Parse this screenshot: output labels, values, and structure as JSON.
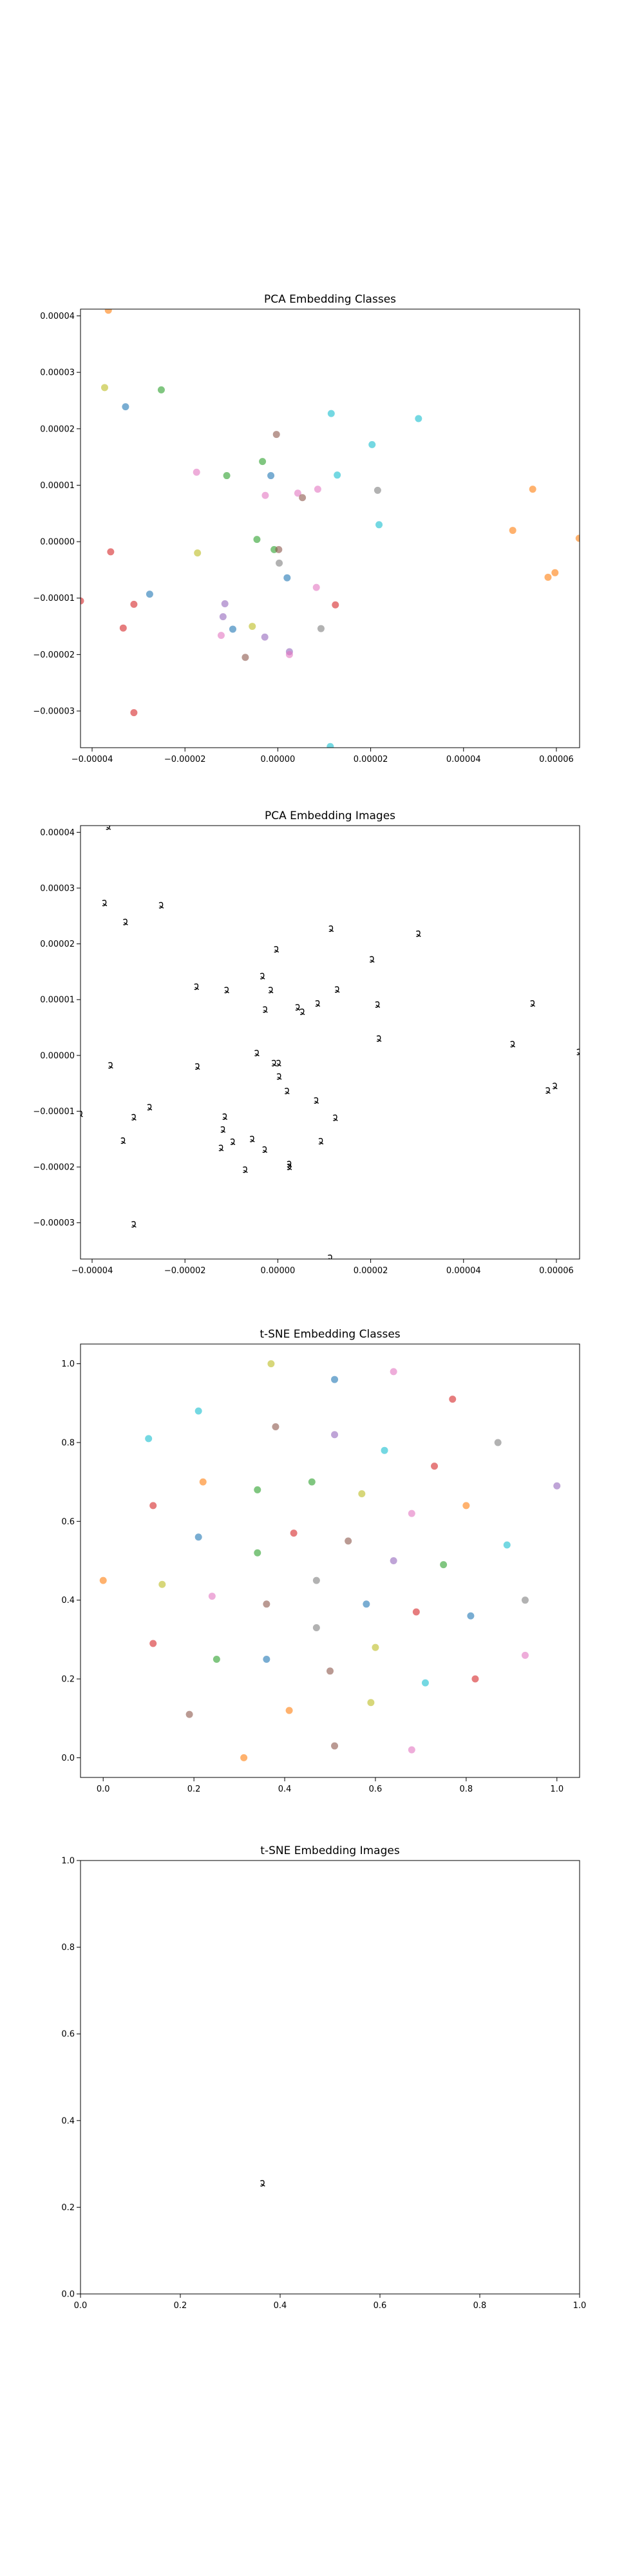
{
  "chart_data": [
    {
      "type": "scatter",
      "title": "PCA Embedding Classes",
      "xlim": [
        -4.25e-05,
        6.5e-05
      ],
      "ylim": [
        -3.65e-05,
        4.12e-05
      ],
      "x_ticks": [
        -4e-05,
        -2e-05,
        0.0,
        2e-05,
        4e-05,
        6e-05
      ],
      "x_tick_labels": [
        "−0.00004",
        "−0.00002",
        "0.00000",
        "0.00002",
        "0.00004",
        "0.00006"
      ],
      "y_ticks": [
        -3e-05,
        -2e-05,
        -1e-05,
        0.0,
        1e-05,
        2e-05,
        3e-05,
        4e-05
      ],
      "y_tick_labels": [
        "−0.00003",
        "−0.00002",
        "−0.00001",
        "0.00000",
        "0.00001",
        "0.00002",
        "0.00003",
        "0.00004"
      ],
      "grid": false,
      "points": [
        {
          "x": -3.65e-05,
          "y": 4.1e-05,
          "color": "#ff7f0e"
        },
        {
          "x": -3.73e-05,
          "y": 2.73e-05,
          "color": "#bcbd22"
        },
        {
          "x": -3.28e-05,
          "y": 2.39e-05,
          "color": "#1f77b4"
        },
        {
          "x": -2.51e-05,
          "y": 2.69e-05,
          "color": "#2ca02c"
        },
        {
          "x": -1.75e-05,
          "y": 1.23e-05,
          "color": "#e377c2"
        },
        {
          "x": -1.1e-05,
          "y": 1.17e-05,
          "color": "#2ca02c"
        },
        {
          "x": -1.73e-05,
          "y": -2e-06,
          "color": "#bcbd22"
        },
        {
          "x": -3.6e-05,
          "y": -1.8e-06,
          "color": "#d62728"
        },
        {
          "x": -4.25e-05,
          "y": -1.05e-05,
          "color": "#d62728"
        },
        {
          "x": -2.76e-05,
          "y": -9.3e-06,
          "color": "#1f77b4"
        },
        {
          "x": -3.1e-05,
          "y": -1.11e-05,
          "color": "#d62728"
        },
        {
          "x": -3.33e-05,
          "y": -1.53e-05,
          "color": "#d62728"
        },
        {
          "x": -3.1e-05,
          "y": -3.03e-05,
          "color": "#d62728"
        },
        {
          "x": -1.14e-05,
          "y": -1.1e-05,
          "color": "#9467bd"
        },
        {
          "x": -1.18e-05,
          "y": -1.33e-05,
          "color": "#9467bd"
        },
        {
          "x": -9.7e-06,
          "y": -1.55e-05,
          "color": "#1f77b4"
        },
        {
          "x": -1.22e-05,
          "y": -1.66e-05,
          "color": "#e377c2"
        },
        {
          "x": -5.5e-06,
          "y": -1.5e-05,
          "color": "#bcbd22"
        },
        {
          "x": -2.8e-06,
          "y": -1.69e-05,
          "color": "#9467bd"
        },
        {
          "x": -7e-06,
          "y": -2.05e-05,
          "color": "#8c564b"
        },
        {
          "x": 2.5e-06,
          "y": -1.95e-05,
          "color": "#9467bd"
        },
        {
          "x": 2.5e-06,
          "y": -2e-05,
          "color": "#e377c2"
        },
        {
          "x": -4.5e-06,
          "y": 4e-07,
          "color": "#2ca02c"
        },
        {
          "x": -8e-07,
          "y": -1.4e-06,
          "color": "#2ca02c"
        },
        {
          "x": 2e-07,
          "y": -1.4e-06,
          "color": "#8c564b"
        },
        {
          "x": 3e-07,
          "y": -3.8e-06,
          "color": "#7f7f7f"
        },
        {
          "x": 2e-06,
          "y": -6.4e-06,
          "color": "#1f77b4"
        },
        {
          "x": 8.3e-06,
          "y": -8.1e-06,
          "color": "#e377c2"
        },
        {
          "x": 9.3e-06,
          "y": -1.54e-05,
          "color": "#7f7f7f"
        },
        {
          "x": 1.24e-05,
          "y": -1.12e-05,
          "color": "#d62728"
        },
        {
          "x": 1.13e-05,
          "y": -3.63e-05,
          "color": "#17becf"
        },
        {
          "x": -3.3e-06,
          "y": 1.42e-05,
          "color": "#2ca02c"
        },
        {
          "x": -1.5e-06,
          "y": 1.17e-05,
          "color": "#1f77b4"
        },
        {
          "x": -3e-07,
          "y": 1.9e-05,
          "color": "#8c564b"
        },
        {
          "x": -2.7e-06,
          "y": 8.2e-06,
          "color": "#e377c2"
        },
        {
          "x": 4.3e-06,
          "y": 8.6e-06,
          "color": "#e377c2"
        },
        {
          "x": 5.3e-06,
          "y": 7.8e-06,
          "color": "#8c564b"
        },
        {
          "x": 8.6e-06,
          "y": 9.3e-06,
          "color": "#e377c2"
        },
        {
          "x": 1.28e-05,
          "y": 1.18e-05,
          "color": "#17becf"
        },
        {
          "x": 1.15e-05,
          "y": 2.27e-05,
          "color": "#17becf"
        },
        {
          "x": 2.03e-05,
          "y": 1.72e-05,
          "color": "#17becf"
        },
        {
          "x": 2.15e-05,
          "y": 9.1e-06,
          "color": "#7f7f7f"
        },
        {
          "x": 2.18e-05,
          "y": 3e-06,
          "color": "#17becf"
        },
        {
          "x": 3.03e-05,
          "y": 2.18e-05,
          "color": "#17becf"
        },
        {
          "x": 5.06e-05,
          "y": 2e-06,
          "color": "#ff7f0e"
        },
        {
          "x": 5.49e-05,
          "y": 9.3e-06,
          "color": "#ff7f0e"
        },
        {
          "x": 5.82e-05,
          "y": -6.3e-06,
          "color": "#ff7f0e"
        },
        {
          "x": 5.97e-05,
          "y": -5.5e-06,
          "color": "#ff7f0e"
        },
        {
          "x": 6.49e-05,
          "y": 6e-07,
          "color": "#ff7f0e"
        }
      ]
    },
    {
      "type": "scatter",
      "title": "PCA Embedding Images",
      "xlim": [
        -4.25e-05,
        6.5e-05
      ],
      "ylim": [
        -3.65e-05,
        4.12e-05
      ],
      "x_ticks": [
        -4e-05,
        -2e-05,
        0.0,
        2e-05,
        4e-05,
        6e-05
      ],
      "x_tick_labels": [
        "−0.00004",
        "−0.00002",
        "0.00000",
        "0.00002",
        "0.00004",
        "0.00006"
      ],
      "y_ticks": [
        -3e-05,
        -2e-05,
        -1e-05,
        0.0,
        1e-05,
        2e-05,
        3e-05,
        4e-05
      ],
      "y_tick_labels": [
        "−0.00003",
        "−0.00002",
        "−0.00001",
        "0.00000",
        "0.00001",
        "0.00002",
        "0.00003",
        "0.00004"
      ],
      "grid": false,
      "marker": "digit-image",
      "points_same_as_chart": 0
    },
    {
      "type": "scatter",
      "title": "t-SNE Embedding Classes",
      "xlim": [
        -0.05,
        1.05
      ],
      "ylim": [
        -0.05,
        1.05
      ],
      "x_ticks": [
        0.0,
        0.2,
        0.4,
        0.6,
        0.8,
        1.0
      ],
      "x_tick_labels": [
        "0.0",
        "0.2",
        "0.4",
        "0.6",
        "0.8",
        "1.0"
      ],
      "y_ticks": [
        0.0,
        0.2,
        0.4,
        0.6,
        0.8,
        1.0
      ],
      "y_tick_labels": [
        "0.0",
        "0.2",
        "0.4",
        "0.6",
        "0.8",
        "1.0"
      ],
      "grid": false,
      "points": [
        {
          "x": 0.37,
          "y": 1.0,
          "color": "#bcbd22"
        },
        {
          "x": 0.51,
          "y": 0.96,
          "color": "#1f77b4"
        },
        {
          "x": 0.64,
          "y": 0.98,
          "color": "#e377c2"
        },
        {
          "x": 0.77,
          "y": 0.91,
          "color": "#d62728"
        },
        {
          "x": 0.21,
          "y": 0.88,
          "color": "#17becf"
        },
        {
          "x": 0.38,
          "y": 0.84,
          "color": "#8c564b"
        },
        {
          "x": 0.51,
          "y": 0.82,
          "color": "#9467bd"
        },
        {
          "x": 0.1,
          "y": 0.81,
          "color": "#17becf"
        },
        {
          "x": 0.62,
          "y": 0.78,
          "color": "#17becf"
        },
        {
          "x": 0.73,
          "y": 0.74,
          "color": "#d62728"
        },
        {
          "x": 0.87,
          "y": 0.8,
          "color": "#7f7f7f"
        },
        {
          "x": 0.22,
          "y": 0.7,
          "color": "#ff7f0e"
        },
        {
          "x": 0.34,
          "y": 0.68,
          "color": "#2ca02c"
        },
        {
          "x": 0.46,
          "y": 0.7,
          "color": "#2ca02c"
        },
        {
          "x": 0.57,
          "y": 0.67,
          "color": "#bcbd22"
        },
        {
          "x": 0.68,
          "y": 0.62,
          "color": "#e377c2"
        },
        {
          "x": 0.8,
          "y": 0.64,
          "color": "#ff7f0e"
        },
        {
          "x": 1.0,
          "y": 0.69,
          "color": "#9467bd"
        },
        {
          "x": 0.11,
          "y": 0.64,
          "color": "#d62728"
        },
        {
          "x": 0.21,
          "y": 0.56,
          "color": "#1f77b4"
        },
        {
          "x": 0.34,
          "y": 0.52,
          "color": "#2ca02c"
        },
        {
          "x": 0.42,
          "y": 0.57,
          "color": "#d62728"
        },
        {
          "x": 0.54,
          "y": 0.55,
          "color": "#8c564b"
        },
        {
          "x": 0.64,
          "y": 0.5,
          "color": "#9467bd"
        },
        {
          "x": 0.75,
          "y": 0.49,
          "color": "#2ca02c"
        },
        {
          "x": 0.89,
          "y": 0.54,
          "color": "#17becf"
        },
        {
          "x": 0.0,
          "y": 0.45,
          "color": "#ff7f0e"
        },
        {
          "x": 0.13,
          "y": 0.44,
          "color": "#bcbd22"
        },
        {
          "x": 0.24,
          "y": 0.41,
          "color": "#e377c2"
        },
        {
          "x": 0.36,
          "y": 0.39,
          "color": "#8c564b"
        },
        {
          "x": 0.47,
          "y": 0.45,
          "color": "#7f7f7f"
        },
        {
          "x": 0.58,
          "y": 0.39,
          "color": "#1f77b4"
        },
        {
          "x": 0.69,
          "y": 0.37,
          "color": "#d62728"
        },
        {
          "x": 0.81,
          "y": 0.36,
          "color": "#1f77b4"
        },
        {
          "x": 0.93,
          "y": 0.4,
          "color": "#7f7f7f"
        },
        {
          "x": 0.11,
          "y": 0.29,
          "color": "#d62728"
        },
        {
          "x": 0.25,
          "y": 0.25,
          "color": "#2ca02c"
        },
        {
          "x": 0.36,
          "y": 0.25,
          "color": "#1f77b4"
        },
        {
          "x": 0.47,
          "y": 0.33,
          "color": "#7f7f7f"
        },
        {
          "x": 0.6,
          "y": 0.28,
          "color": "#bcbd22"
        },
        {
          "x": 0.5,
          "y": 0.22,
          "color": "#8c564b"
        },
        {
          "x": 0.71,
          "y": 0.19,
          "color": "#17becf"
        },
        {
          "x": 0.82,
          "y": 0.2,
          "color": "#d62728"
        },
        {
          "x": 0.93,
          "y": 0.26,
          "color": "#e377c2"
        },
        {
          "x": 0.19,
          "y": 0.11,
          "color": "#8c564b"
        },
        {
          "x": 0.41,
          "y": 0.12,
          "color": "#ff7f0e"
        },
        {
          "x": 0.59,
          "y": 0.14,
          "color": "#bcbd22"
        },
        {
          "x": 0.31,
          "y": 0.0,
          "color": "#ff7f0e"
        },
        {
          "x": 0.51,
          "y": 0.03,
          "color": "#8c564b"
        },
        {
          "x": 0.68,
          "y": 0.02,
          "color": "#e377c2"
        }
      ]
    },
    {
      "type": "scatter",
      "title": "t-SNE Embedding Images",
      "xlim": [
        0.0,
        1.0
      ],
      "ylim": [
        0.0,
        1.0
      ],
      "x_ticks": [
        0.0,
        0.2,
        0.4,
        0.6,
        0.8,
        1.0
      ],
      "x_tick_labels": [
        "0.0",
        "0.2",
        "0.4",
        "0.6",
        "0.8",
        "1.0"
      ],
      "y_ticks": [
        0.0,
        0.2,
        0.4,
        0.6,
        0.8,
        1.0
      ],
      "y_tick_labels": [
        "0.0",
        "0.2",
        "0.4",
        "0.6",
        "0.8",
        "1.0"
      ],
      "grid": false,
      "marker": "digit-image",
      "points": [
        {
          "x": 0.365,
          "y": 0.255,
          "color": "#000000"
        }
      ]
    }
  ]
}
